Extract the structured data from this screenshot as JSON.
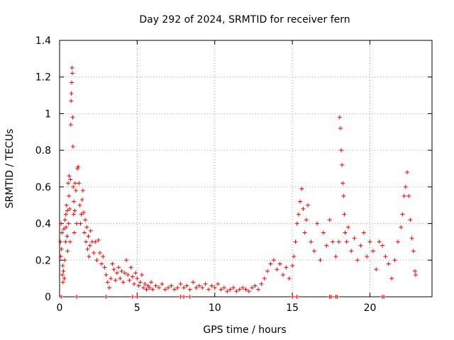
{
  "chart_data": {
    "type": "scatter",
    "title": "Day 292 of 2024, SRMTID for receiver fern",
    "xlabel": "GPS time / hours",
    "ylabel": "SRMTID / TECUs",
    "xlim": [
      0,
      24
    ],
    "ylim": [
      0,
      1.4
    ],
    "xticks": [
      0,
      5,
      10,
      15,
      20
    ],
    "xtick_labels": [
      "0",
      "5",
      "10",
      "15",
      "20"
    ],
    "yticks": [
      0,
      0.2,
      0.4,
      0.6,
      0.8,
      1,
      1.2,
      1.4
    ],
    "ytick_labels": [
      "0",
      "0.2",
      "0.4",
      "0.6",
      "0.8",
      "1",
      "1.2",
      "1.4"
    ],
    "grid": true,
    "marker": "+",
    "color": "#ff0000",
    "series": [
      {
        "name": "SRMTID",
        "points": [
          [
            0.05,
            0.3
          ],
          [
            0.08,
            0.22
          ],
          [
            0.1,
            0.4
          ],
          [
            0.12,
            0.26
          ],
          [
            0.15,
            0.35
          ],
          [
            0.18,
            0.12
          ],
          [
            0.2,
            0.17
          ],
          [
            0.22,
            0.08
          ],
          [
            0.25,
            0.14
          ],
          [
            0.27,
            0.37
          ],
          [
            0.3,
            0.1
          ],
          [
            0.33,
            0.2
          ],
          [
            0.35,
            0.42
          ],
          [
            0.38,
            0.3
          ],
          [
            0.4,
            0.45
          ],
          [
            0.42,
            0.38
          ],
          [
            0.45,
            0.5
          ],
          [
            0.48,
            0.33
          ],
          [
            0.5,
            0.47
          ],
          [
            0.52,
            0.25
          ],
          [
            0.55,
            0.62
          ],
          [
            0.58,
            0.4
          ],
          [
            0.6,
            0.55
          ],
          [
            0.62,
            0.66
          ],
          [
            0.65,
            0.48
          ],
          [
            0.68,
            0.3
          ],
          [
            0.7,
            0.64
          ],
          [
            0.72,
            0.94
          ],
          [
            0.74,
            1.07
          ],
          [
            0.76,
            1.11
          ],
          [
            0.78,
            1.17
          ],
          [
            0.8,
            1.25
          ],
          [
            0.82,
            1.22
          ],
          [
            0.84,
            0.98
          ],
          [
            0.86,
            0.82
          ],
          [
            0.88,
            0.6
          ],
          [
            0.9,
            0.45
          ],
          [
            0.92,
            0.52
          ],
          [
            0.95,
            0.35
          ],
          [
            0.98,
            0.47
          ],
          [
            1.0,
            0.62
          ],
          [
            1.05,
            0.58
          ],
          [
            1.1,
            0.4
          ],
          [
            1.15,
            0.7
          ],
          [
            1.2,
            0.71
          ],
          [
            1.25,
            0.62
          ],
          [
            1.3,
            0.5
          ],
          [
            1.35,
            0.4
          ],
          [
            1.4,
            0.45
          ],
          [
            1.45,
            0.53
          ],
          [
            1.5,
            0.58
          ],
          [
            1.55,
            0.46
          ],
          [
            1.6,
            0.35
          ],
          [
            1.65,
            0.42
          ],
          [
            1.7,
            0.3
          ],
          [
            1.75,
            0.38
          ],
          [
            1.8,
            0.26
          ],
          [
            1.85,
            0.33
          ],
          [
            1.9,
            0.22
          ],
          [
            1.95,
            0.28
          ],
          [
            2.0,
            0.36
          ],
          [
            2.1,
            0.3
          ],
          [
            2.2,
            0.24
          ],
          [
            2.3,
            0.3
          ],
          [
            2.4,
            0.2
          ],
          [
            2.5,
            0.31
          ],
          [
            2.6,
            0.24
          ],
          [
            2.7,
            0.18
          ],
          [
            2.8,
            0.22
          ],
          [
            2.9,
            0.16
          ],
          [
            3.0,
            0.12
          ],
          [
            3.1,
            0.08
          ],
          [
            3.2,
            0.05
          ],
          [
            3.3,
            0.1
          ],
          [
            3.4,
            0.18
          ],
          [
            3.5,
            0.15
          ],
          [
            3.6,
            0.09
          ],
          [
            3.7,
            0.13
          ],
          [
            3.8,
            0.16
          ],
          [
            3.9,
            0.1
          ],
          [
            4.0,
            0.14
          ],
          [
            4.1,
            0.08
          ],
          [
            4.2,
            0.13
          ],
          [
            4.3,
            0.2
          ],
          [
            4.4,
            0.12
          ],
          [
            4.5,
            0.09
          ],
          [
            4.6,
            0.16
          ],
          [
            4.7,
            0.11
          ],
          [
            4.8,
            0.07
          ],
          [
            4.9,
            0.13
          ],
          [
            5.0,
            0.1
          ],
          [
            5.1,
            0.06
          ],
          [
            5.2,
            0.08
          ],
          [
            5.3,
            0.12
          ],
          [
            5.4,
            0.05
          ],
          [
            5.5,
            0.07
          ],
          [
            5.6,
            0.04
          ],
          [
            5.7,
            0.06
          ],
          [
            5.8,
            0.05
          ],
          [
            5.9,
            0.08
          ],
          [
            6.0,
            0.04
          ],
          [
            6.2,
            0.06
          ],
          [
            6.4,
            0.05
          ],
          [
            6.6,
            0.07
          ],
          [
            6.8,
            0.04
          ],
          [
            7.0,
            0.05
          ],
          [
            7.2,
            0.06
          ],
          [
            7.4,
            0.04
          ],
          [
            7.6,
            0.05
          ],
          [
            7.8,
            0.07
          ],
          [
            8.0,
            0.05
          ],
          [
            8.2,
            0.06
          ],
          [
            8.4,
            0.04
          ],
          [
            8.6,
            0.08
          ],
          [
            8.8,
            0.05
          ],
          [
            9.0,
            0.06
          ],
          [
            9.2,
            0.05
          ],
          [
            9.4,
            0.07
          ],
          [
            9.6,
            0.04
          ],
          [
            9.8,
            0.06
          ],
          [
            10.0,
            0.05
          ],
          [
            10.2,
            0.07
          ],
          [
            10.4,
            0.04
          ],
          [
            10.6,
            0.05
          ],
          [
            10.8,
            0.03
          ],
          [
            11.0,
            0.04
          ],
          [
            11.2,
            0.05
          ],
          [
            11.4,
            0.03
          ],
          [
            11.6,
            0.04
          ],
          [
            11.8,
            0.05
          ],
          [
            12.0,
            0.04
          ],
          [
            12.2,
            0.03
          ],
          [
            12.4,
            0.05
          ],
          [
            12.6,
            0.06
          ],
          [
            12.8,
            0.04
          ],
          [
            13.0,
            0.07
          ],
          [
            13.2,
            0.1
          ],
          [
            13.4,
            0.14
          ],
          [
            13.6,
            0.18
          ],
          [
            13.8,
            0.2
          ],
          [
            14.0,
            0.15
          ],
          [
            14.2,
            0.18
          ],
          [
            14.4,
            0.12
          ],
          [
            14.6,
            0.16
          ],
          [
            14.8,
            0.1
          ],
          [
            15.0,
            0.17
          ],
          [
            15.1,
            0.22
          ],
          [
            15.2,
            0.3
          ],
          [
            15.3,
            0.4
          ],
          [
            15.4,
            0.45
          ],
          [
            15.5,
            0.52
          ],
          [
            15.6,
            0.59
          ],
          [
            15.7,
            0.48
          ],
          [
            15.8,
            0.35
          ],
          [
            15.9,
            0.42
          ],
          [
            16.0,
            0.5
          ],
          [
            16.2,
            0.3
          ],
          [
            16.4,
            0.25
          ],
          [
            16.6,
            0.4
          ],
          [
            16.8,
            0.2
          ],
          [
            17.0,
            0.35
          ],
          [
            17.2,
            0.28
          ],
          [
            17.4,
            0.42
          ],
          [
            17.6,
            0.3
          ],
          [
            17.8,
            0.22
          ],
          [
            18.0,
            0.3
          ],
          [
            18.05,
            0.98
          ],
          [
            18.1,
            0.92
          ],
          [
            18.15,
            0.8
          ],
          [
            18.2,
            0.72
          ],
          [
            18.25,
            0.62
          ],
          [
            18.3,
            0.55
          ],
          [
            18.35,
            0.45
          ],
          [
            18.4,
            0.35
          ],
          [
            18.5,
            0.3
          ],
          [
            18.6,
            0.38
          ],
          [
            18.8,
            0.25
          ],
          [
            19.0,
            0.32
          ],
          [
            19.2,
            0.2
          ],
          [
            19.4,
            0.28
          ],
          [
            19.6,
            0.35
          ],
          [
            19.8,
            0.22
          ],
          [
            20.0,
            0.3
          ],
          [
            20.2,
            0.25
          ],
          [
            20.4,
            0.15
          ],
          [
            20.6,
            0.3
          ],
          [
            20.8,
            0.28
          ],
          [
            21.0,
            0.22
          ],
          [
            21.2,
            0.18
          ],
          [
            21.4,
            0.1
          ],
          [
            21.6,
            0.2
          ],
          [
            21.8,
            0.3
          ],
          [
            22.0,
            0.38
          ],
          [
            22.1,
            0.45
          ],
          [
            22.2,
            0.55
          ],
          [
            22.3,
            0.6
          ],
          [
            22.4,
            0.68
          ],
          [
            22.5,
            0.55
          ],
          [
            22.6,
            0.42
          ],
          [
            22.7,
            0.32
          ],
          [
            22.8,
            0.25
          ],
          [
            22.9,
            0.14
          ],
          [
            22.95,
            0.12
          ],
          [
            0.1,
            0.0
          ],
          [
            1.1,
            0.0
          ],
          [
            3.0,
            0.0
          ],
          [
            4.7,
            0.0
          ],
          [
            5.0,
            0.0
          ],
          [
            7.8,
            0.0
          ],
          [
            8.0,
            0.0
          ],
          [
            8.4,
            0.0
          ],
          [
            15.0,
            0.0
          ],
          [
            15.3,
            0.0
          ],
          [
            17.4,
            0.0
          ],
          [
            17.5,
            0.0
          ],
          [
            17.8,
            0.0
          ],
          [
            17.9,
            0.0
          ],
          [
            20.8,
            0.0
          ],
          [
            20.9,
            0.0
          ]
        ]
      }
    ]
  }
}
